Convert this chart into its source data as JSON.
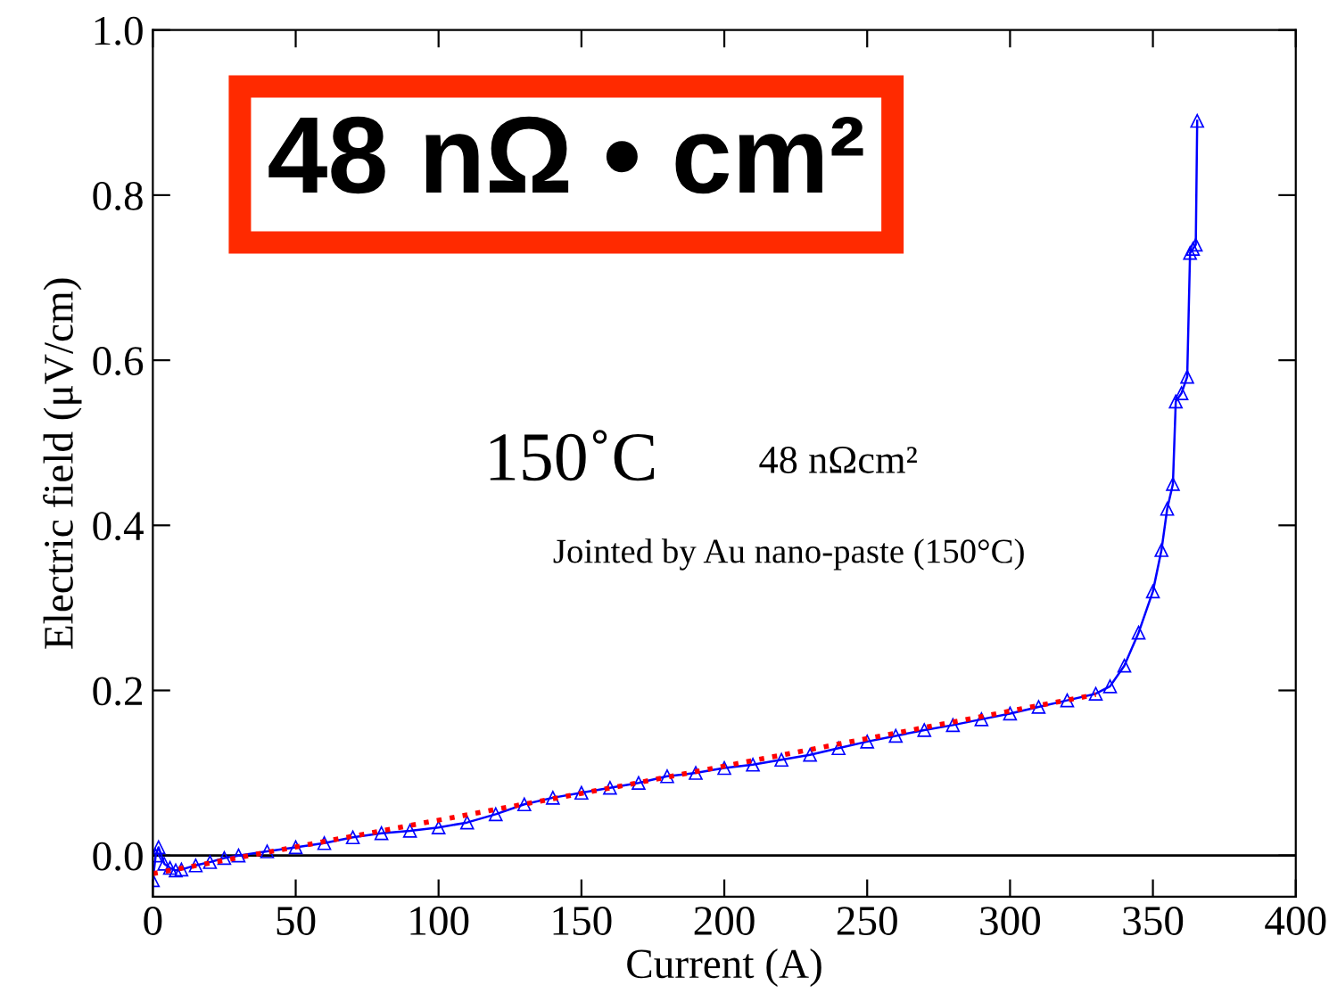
{
  "chart_data": {
    "type": "line",
    "xlabel": "Current (A)",
    "ylabel": "Electric field (μV/cm)",
    "xlim": [
      0,
      400
    ],
    "xticks": [
      0,
      50,
      100,
      150,
      200,
      250,
      300,
      350,
      400
    ],
    "ylim": [
      -0.05,
      1.0
    ],
    "yticks": [
      {
        "value": 0,
        "label": "0.0"
      },
      {
        "value": 0.2,
        "label": "0.2"
      },
      {
        "value": 0.4,
        "label": "0.4"
      },
      {
        "value": 0.6,
        "label": "0.6"
      },
      {
        "value": 0.8,
        "label": "0.8"
      },
      {
        "value": 1.0,
        "label": "1.0"
      }
    ],
    "grid": false,
    "legend": false,
    "series": [
      {
        "color": "#0000ff",
        "marker": "triangle",
        "line_style": "solid",
        "x": [
          0,
          1,
          2,
          4,
          6,
          8,
          10,
          15,
          20,
          25,
          30,
          40,
          50,
          60,
          70,
          80,
          90,
          100,
          110,
          120,
          130,
          140,
          150,
          160,
          170,
          180,
          190,
          200,
          210,
          220,
          230,
          240,
          250,
          260,
          270,
          280,
          290,
          300,
          310,
          320,
          330,
          335,
          340,
          345,
          350,
          353,
          355,
          357,
          358,
          360,
          362,
          363,
          364,
          365,
          365.5
        ],
        "values": [
          -0.03,
          0.0,
          0.01,
          -0.01,
          -0.015,
          -0.018,
          -0.017,
          -0.012,
          -0.008,
          -0.003,
          0.0,
          0.005,
          0.01,
          0.015,
          0.022,
          0.027,
          0.03,
          0.034,
          0.04,
          0.05,
          0.062,
          0.07,
          0.076,
          0.082,
          0.088,
          0.096,
          0.1,
          0.106,
          0.11,
          0.116,
          0.122,
          0.13,
          0.138,
          0.145,
          0.152,
          0.158,
          0.165,
          0.172,
          0.18,
          0.188,
          0.196,
          0.205,
          0.23,
          0.27,
          0.32,
          0.37,
          0.42,
          0.45,
          0.55,
          0.56,
          0.58,
          0.73,
          0.735,
          0.74,
          0.89
        ]
      },
      {
        "color": "#ff0000",
        "marker": "none",
        "line_style": "dotted",
        "x": [
          0,
          165,
          330
        ],
        "values": [
          -0.022,
          0.085,
          0.195
        ]
      }
    ],
    "ref_lines": [
      {
        "axis": "y",
        "value": 0,
        "color": "#000000",
        "line_style": "solid"
      }
    ],
    "annotations": [
      "48 nΩ • cm²",
      "150˚C",
      "48 nΩcm²",
      "Jointed by Au nano-paste (150°C)"
    ]
  }
}
